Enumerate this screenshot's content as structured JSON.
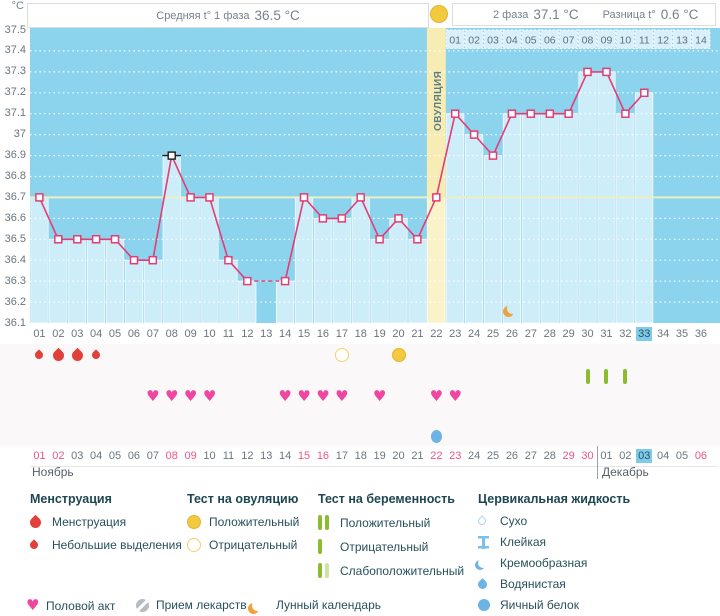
{
  "y_axis": {
    "unit": "°C",
    "ticks": [
      "37.5",
      "37.4",
      "37.3",
      "37.2",
      "37.1",
      "37",
      "36.9",
      "36.8",
      "36.7",
      "36.6",
      "36.5",
      "36.4",
      "36.3",
      "36.2",
      "36.1"
    ]
  },
  "header": {
    "phase1_label": "Средняя t° 1 фаза",
    "phase1_value": "36.5 °C",
    "phase2_label": "2 фаза",
    "phase2_value": "37.1 °C",
    "diff_label": "Разница t°",
    "diff_value": "0.6 °C"
  },
  "chart_data": {
    "type": "line",
    "title": "График базальной температуры",
    "ylabel": "°C",
    "ylim": [
      36.1,
      37.5
    ],
    "ytick_step": 0.1,
    "grid": true,
    "x_days": [
      "01",
      "02",
      "03",
      "04",
      "05",
      "06",
      "07",
      "08",
      "09",
      "10",
      "11",
      "12",
      "13",
      "14",
      "15",
      "16",
      "17",
      "18",
      "19",
      "20",
      "21",
      "22",
      "23",
      "24",
      "25",
      "26",
      "27",
      "28",
      "29",
      "30",
      "31",
      "32",
      "33",
      "34",
      "35",
      "36"
    ],
    "series": [
      {
        "name": "Базальная температура",
        "values": [
          36.7,
          36.5,
          36.5,
          36.5,
          36.5,
          36.4,
          36.4,
          36.9,
          36.7,
          36.7,
          36.4,
          36.3,
          null,
          36.3,
          36.7,
          36.6,
          36.6,
          36.7,
          36.5,
          36.6,
          36.5,
          36.7,
          37.1,
          37.0,
          36.9,
          37.1,
          37.1,
          37.1,
          37.1,
          37.3,
          37.3,
          37.1,
          37.2,
          null,
          null,
          null
        ]
      }
    ],
    "coverline": 36.7,
    "excluded_day": 8,
    "ovulation_day": 22,
    "ovulation_label": "ОВУЛЯЦИЯ",
    "current_day": 33,
    "post_ovulation_day_labels": [
      "01",
      "02",
      "03",
      "04",
      "05",
      "06",
      "07",
      "08",
      "09",
      "10",
      "11",
      "12",
      "13",
      "14"
    ],
    "moon_day": 26,
    "events": {
      "menstruation": [
        {
          "day": 1,
          "type": "light"
        },
        {
          "day": 2,
          "type": "heavy"
        },
        {
          "day": 3,
          "type": "heavy"
        },
        {
          "day": 4,
          "type": "light"
        }
      ],
      "ovulation_tests": [
        {
          "day": 17,
          "result": "negative"
        },
        {
          "day": 20,
          "result": "positive"
        }
      ],
      "pregnancy_tests": [
        {
          "day": 30,
          "result": "negative"
        },
        {
          "day": 31,
          "result": "negative"
        },
        {
          "day": 32,
          "result": "negative"
        }
      ],
      "intercourse_days": [
        7,
        8,
        9,
        10,
        14,
        15,
        16,
        17,
        19,
        22,
        23
      ],
      "cervical_fluid": [
        {
          "day": 22,
          "type": "Яичный белок"
        }
      ]
    },
    "dates": {
      "months": [
        {
          "name": "Ноябрь",
          "days": [
            "01",
            "02",
            "03",
            "04",
            "05",
            "06",
            "07",
            "08",
            "09",
            "10",
            "11",
            "12",
            "13",
            "14",
            "15",
            "16",
            "17",
            "18",
            "19",
            "20",
            "21",
            "22",
            "23",
            "24",
            "25",
            "26",
            "27",
            "28",
            "29",
            "30"
          ],
          "weekends": [
            "01",
            "02",
            "08",
            "09",
            "15",
            "16",
            "22",
            "23",
            "29",
            "30"
          ]
        },
        {
          "name": "Декабрь",
          "days": [
            "01",
            "02",
            "03",
            "04",
            "05",
            "06"
          ],
          "weekends": [
            "06"
          ]
        }
      ],
      "current": {
        "month": "Декабрь",
        "day": "03"
      }
    }
  },
  "colors": {
    "plot_bg": "#8cd3ee",
    "bar": "#cdedf9",
    "ovulation_column": "#f6ecb4",
    "ovulation_bar": "#faf3c9",
    "strip_cell": "#d9f0fa",
    "coverline": "#ecefc3",
    "temp_line": "#e23d74",
    "marker_excluded": "#1c1c1c",
    "highlight_bg": "#7fccea",
    "weekend": "#ee5586",
    "day_text": "#6b757e",
    "strip_text": "#5b707c",
    "header_text": "#75828c",
    "legend_text": "#28505c",
    "month_text": "#596069",
    "heart": "#ef47a1",
    "drop_red": "#e2403b",
    "test_yellow": "#f3c93d",
    "test_yellow_border": "#e3b52f",
    "pregnancy_green": "#8cbb30",
    "pregnancy_green_pale": "#cfe3a2",
    "cervical_blue": "#6cb4e6",
    "moon_orange": "#f0a23b",
    "pill_gray": "#b6bcc2",
    "icon_band_bg": "#faf8f8"
  },
  "legend": {
    "menstruation": {
      "title": "Менструация",
      "items": [
        {
          "icon": "drop-large",
          "label": "Менструация"
        },
        {
          "icon": "drop-small",
          "label": "Небольшие выделения"
        }
      ]
    },
    "ovulation_test": {
      "title": "Тест на овуляцию",
      "items": [
        {
          "icon": "yellow-circle-filled",
          "label": "Положительный"
        },
        {
          "icon": "yellow-circle-outline",
          "label": "Отрицательный"
        }
      ]
    },
    "pregnancy_test": {
      "title": "Тест на беременность",
      "items": [
        {
          "icon": "two-green-bars",
          "label": "Положительный"
        },
        {
          "icon": "one-green-bar",
          "label": "Отрицательный"
        },
        {
          "icon": "green-pale-bars",
          "label": "Слабоположительный"
        }
      ]
    },
    "cervical_fluid": {
      "title": "Цервикальная жидкость",
      "items": [
        {
          "icon": "drop-outline",
          "label": "Сухо"
        },
        {
          "icon": "ibeam",
          "label": "Клейкая"
        },
        {
          "icon": "crescent-blue",
          "label": "Кремообразная"
        },
        {
          "icon": "drop-blue",
          "label": "Водянистая"
        },
        {
          "icon": "blue-circle",
          "label": "Яичный белок"
        }
      ]
    },
    "extra": [
      {
        "icon": "heart",
        "label": "Половой акт"
      },
      {
        "icon": "pill",
        "label": "Прием лекарств"
      },
      {
        "icon": "moon",
        "label": "Лунный календарь"
      }
    ]
  }
}
